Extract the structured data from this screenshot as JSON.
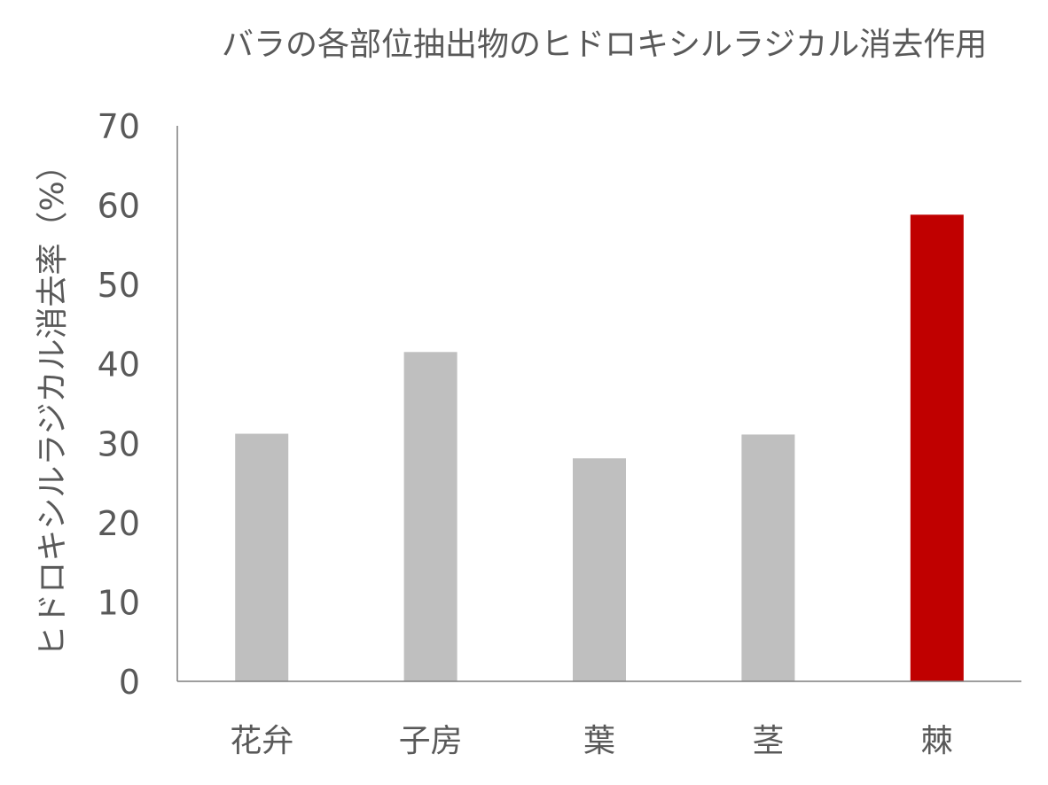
{
  "chart_data": {
    "type": "bar",
    "title": "バラの各部位抽出物のヒドロキシルラジカル消去作用",
    "xlabel": "",
    "ylabel": "ヒドロキシルラジカル消去率（%）",
    "categories": [
      "花弁",
      "子房",
      "葉",
      "茎",
      "棘"
    ],
    "values": [
      31.2,
      41.5,
      28.1,
      31.1,
      58.8
    ],
    "ylim": [
      0,
      70
    ],
    "yticks": [
      "0",
      "10",
      "20",
      "30",
      "40",
      "50",
      "60",
      "70"
    ],
    "bar_colors": [
      "#bfbfbf",
      "#bfbfbf",
      "#bfbfbf",
      "#bfbfbf",
      "#c00000"
    ],
    "grid": false,
    "legend": "none"
  }
}
